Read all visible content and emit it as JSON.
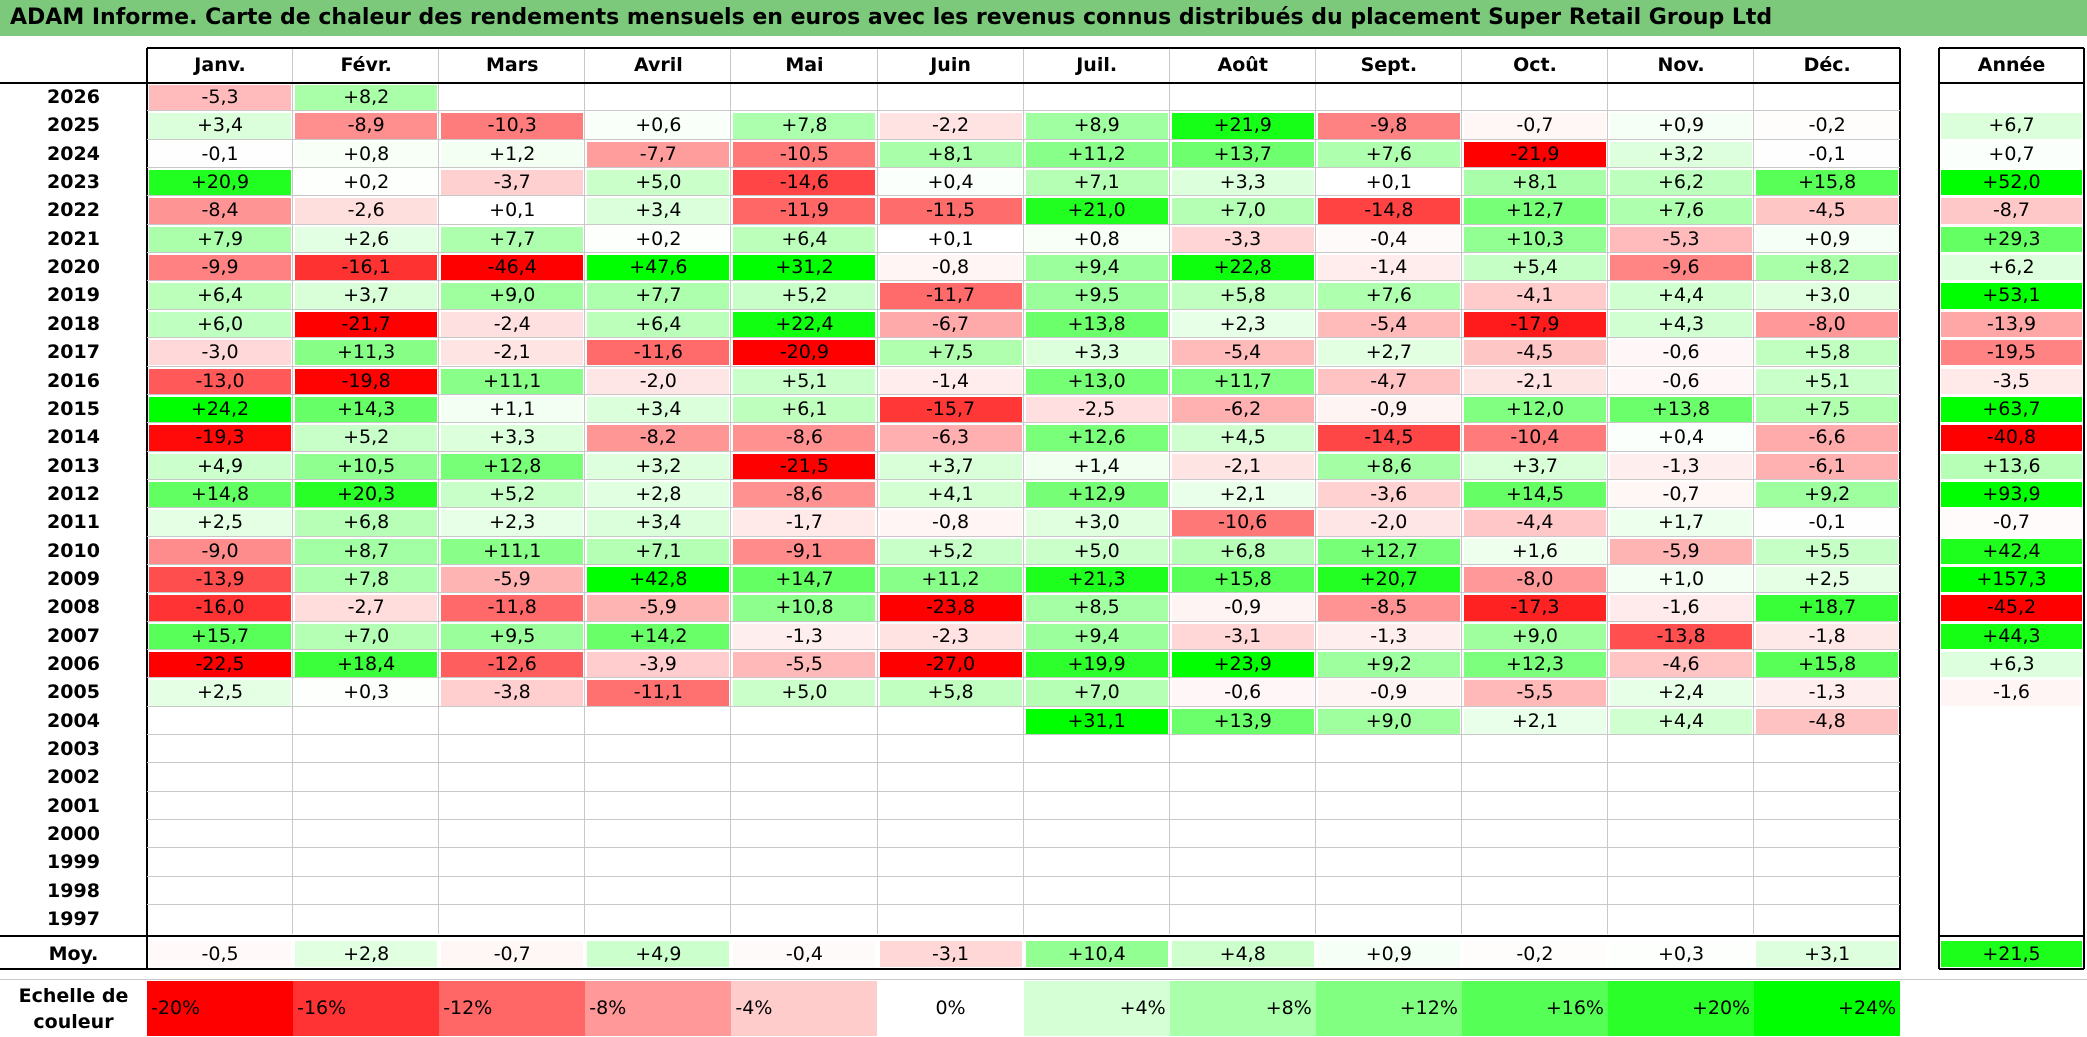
{
  "title": "ADAM Informe. Carte de chaleur des rendements mensuels en euros avec les revenus connus distribués du placement Super Retail Group Ltd",
  "months": [
    "Janv.",
    "Févr.",
    "Mars",
    "Avril",
    "Mai",
    "Juin",
    "Juil.",
    "Août",
    "Sept.",
    "Oct.",
    "Nov.",
    "Déc."
  ],
  "annual_header": "Année",
  "avg_label": "Moy.",
  "scale_label": "Echelle de couleur",
  "colors": {
    "neg_max": "#ff0000",
    "neutral": "#ffffff",
    "pos_max": "#00ff00",
    "title_bg": "#7cc97c"
  },
  "chart_data": {
    "type": "heatmap",
    "years": [
      "2026",
      "2025",
      "2024",
      "2023",
      "2022",
      "2021",
      "2020",
      "2019",
      "2018",
      "2017",
      "2016",
      "2015",
      "2014",
      "2013",
      "2012",
      "2011",
      "2010",
      "2009",
      "2008",
      "2007",
      "2006",
      "2005",
      "2004",
      "2003",
      "2002",
      "2001",
      "2000",
      "1999",
      "1998",
      "1997"
    ],
    "values": [
      [
        "-5,3",
        "+8,2",
        "",
        "",
        "",
        "",
        "",
        "",
        "",
        "",
        "",
        ""
      ],
      [
        "+3,4",
        "-8,9",
        "-10,3",
        "+0,6",
        "+7,8",
        "-2,2",
        "+8,9",
        "+21,9",
        "-9,8",
        "-0,7",
        "+0,9",
        "-0,2"
      ],
      [
        "-0,1",
        "+0,8",
        "+1,2",
        "-7,7",
        "-10,5",
        "+8,1",
        "+11,2",
        "+13,7",
        "+7,6",
        "-21,9",
        "+3,2",
        "-0,1"
      ],
      [
        "+20,9",
        "+0,2",
        "-3,7",
        "+5,0",
        "-14,6",
        "+0,4",
        "+7,1",
        "+3,3",
        "+0,1",
        "+8,1",
        "+6,2",
        "+15,8"
      ],
      [
        "-8,4",
        "-2,6",
        "+0,1",
        "+3,4",
        "-11,9",
        "-11,5",
        "+21,0",
        "+7,0",
        "-14,8",
        "+12,7",
        "+7,6",
        "-4,5"
      ],
      [
        "+7,9",
        "+2,6",
        "+7,7",
        "+0,2",
        "+6,4",
        "+0,1",
        "+0,8",
        "-3,3",
        "-0,4",
        "+10,3",
        "-5,3",
        "+0,9"
      ],
      [
        "-9,9",
        "-16,1",
        "-46,4",
        "+47,6",
        "+31,2",
        "-0,8",
        "+9,4",
        "+22,8",
        "-1,4",
        "+5,4",
        "-9,6",
        "+8,2"
      ],
      [
        "+6,4",
        "+3,7",
        "+9,0",
        "+7,7",
        "+5,2",
        "-11,7",
        "+9,5",
        "+5,8",
        "+7,6",
        "-4,1",
        "+4,4",
        "+3,0"
      ],
      [
        "+6,0",
        "-21,7",
        "-2,4",
        "+6,4",
        "+22,4",
        "-6,7",
        "+13,8",
        "+2,3",
        "-5,4",
        "-17,9",
        "+4,3",
        "-8,0"
      ],
      [
        "-3,0",
        "+11,3",
        "-2,1",
        "-11,6",
        "-20,9",
        "+7,5",
        "+3,3",
        "-5,4",
        "+2,7",
        "-4,5",
        "-0,6",
        "+5,8"
      ],
      [
        "-13,0",
        "-19,8",
        "+11,1",
        "-2,0",
        "+5,1",
        "-1,4",
        "+13,0",
        "+11,7",
        "-4,7",
        "-2,1",
        "-0,6",
        "+5,1"
      ],
      [
        "+24,2",
        "+14,3",
        "+1,1",
        "+3,4",
        "+6,1",
        "-15,7",
        "-2,5",
        "-6,2",
        "-0,9",
        "+12,0",
        "+13,8",
        "+7,5"
      ],
      [
        "-19,3",
        "+5,2",
        "+3,3",
        "-8,2",
        "-8,6",
        "-6,3",
        "+12,6",
        "+4,5",
        "-14,5",
        "-10,4",
        "+0,4",
        "-6,6"
      ],
      [
        "+4,9",
        "+10,5",
        "+12,8",
        "+3,2",
        "-21,5",
        "+3,7",
        "+1,4",
        "-2,1",
        "+8,6",
        "+3,7",
        "-1,3",
        "-6,1"
      ],
      [
        "+14,8",
        "+20,3",
        "+5,2",
        "+2,8",
        "-8,6",
        "+4,1",
        "+12,9",
        "+2,1",
        "-3,6",
        "+14,5",
        "-0,7",
        "+9,2"
      ],
      [
        "+2,5",
        "+6,8",
        "+2,3",
        "+3,4",
        "-1,7",
        "-0,8",
        "+3,0",
        "-10,6",
        "-2,0",
        "-4,4",
        "+1,7",
        "-0,1"
      ],
      [
        "-9,0",
        "+8,7",
        "+11,1",
        "+7,1",
        "-9,1",
        "+5,2",
        "+5,0",
        "+6,8",
        "+12,7",
        "+1,6",
        "-5,9",
        "+5,5"
      ],
      [
        "-13,9",
        "+7,8",
        "-5,9",
        "+42,8",
        "+14,7",
        "+11,2",
        "+21,3",
        "+15,8",
        "+20,7",
        "-8,0",
        "+1,0",
        "+2,5"
      ],
      [
        "-16,0",
        "-2,7",
        "-11,8",
        "-5,9",
        "+10,8",
        "-23,8",
        "+8,5",
        "-0,9",
        "-8,5",
        "-17,3",
        "-1,6",
        "+18,7"
      ],
      [
        "+15,7",
        "+7,0",
        "+9,5",
        "+14,2",
        "-1,3",
        "-2,3",
        "+9,4",
        "-3,1",
        "-1,3",
        "+9,0",
        "-13,8",
        "-1,8"
      ],
      [
        "-22,5",
        "+18,4",
        "-12,6",
        "-3,9",
        "-5,5",
        "-27,0",
        "+19,9",
        "+23,9",
        "+9,2",
        "+12,3",
        "-4,6",
        "+15,8"
      ],
      [
        "+2,5",
        "+0,3",
        "-3,8",
        "-11,1",
        "+5,0",
        "+5,8",
        "+7,0",
        "-0,6",
        "-0,9",
        "-5,5",
        "+2,4",
        "-1,3"
      ],
      [
        "",
        "",
        "",
        "",
        "",
        "",
        "+31,1",
        "+13,9",
        "+9,0",
        "+2,1",
        "+4,4",
        "-4,8"
      ],
      [
        "",
        "",
        "",
        "",
        "",
        "",
        "",
        "",
        "",
        "",
        "",
        ""
      ],
      [
        "",
        "",
        "",
        "",
        "",
        "",
        "",
        "",
        "",
        "",
        "",
        ""
      ],
      [
        "",
        "",
        "",
        "",
        "",
        "",
        "",
        "",
        "",
        "",
        "",
        ""
      ],
      [
        "",
        "",
        "",
        "",
        "",
        "",
        "",
        "",
        "",
        "",
        "",
        ""
      ],
      [
        "",
        "",
        "",
        "",
        "",
        "",
        "",
        "",
        "",
        "",
        "",
        ""
      ],
      [
        "",
        "",
        "",
        "",
        "",
        "",
        "",
        "",
        "",
        "",
        "",
        ""
      ],
      [
        "",
        "",
        "",
        "",
        "",
        "",
        "",
        "",
        "",
        "",
        "",
        ""
      ]
    ],
    "annual": [
      "",
      "+6,7",
      "+0,7",
      "+52,0",
      "-8,7",
      "+29,3",
      "+6,2",
      "+53,1",
      "-13,9",
      "-19,5",
      "-3,5",
      "+63,7",
      "-40,8",
      "+13,6",
      "+93,9",
      "-0,7",
      "+42,4",
      "+157,3",
      "-45,2",
      "+44,3",
      "+6,3",
      "-1,6",
      "",
      "",
      "",
      "",
      "",
      "",
      "",
      ""
    ],
    "averages": [
      "-0,5",
      "+2,8",
      "-0,7",
      "+4,9",
      "-0,4",
      "-3,1",
      "+10,4",
      "+4,8",
      "+0,9",
      "-0,2",
      "+0,3",
      "+3,1"
    ],
    "average_annual": "+21,5",
    "scale": [
      "-20%",
      "-16%",
      "-12%",
      "-8%",
      "-4%",
      "0%",
      "+4%",
      "+8%",
      "+12%",
      "+16%",
      "+20%",
      "+24%"
    ],
    "color_range": [
      -20,
      24
    ]
  }
}
